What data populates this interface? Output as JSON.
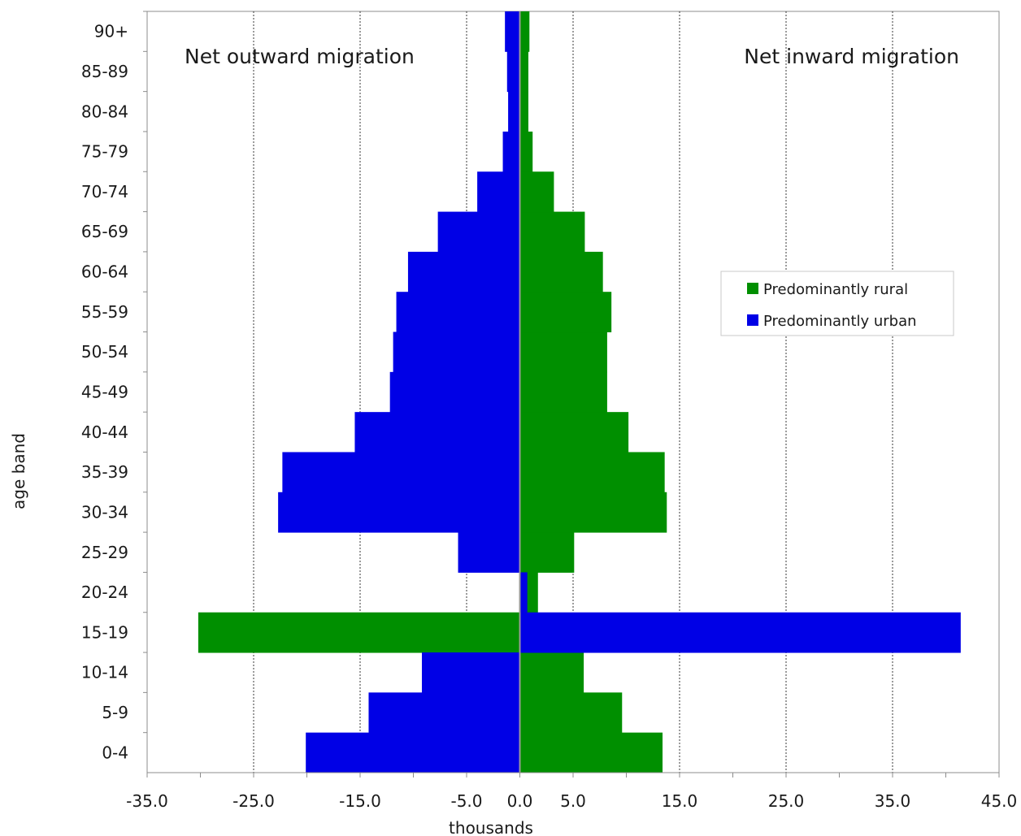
{
  "chart_data": {
    "type": "bar",
    "orientation": "horizontal",
    "barmode": "overlay",
    "categories": [
      "0-4",
      "5-9",
      "10-14",
      "15-19",
      "20-24",
      "25-29",
      "30-34",
      "35-39",
      "40-44",
      "45-49",
      "50-54",
      "55-59",
      "60-64",
      "65-69",
      "70-74",
      "75-79",
      "80-84",
      "85-89",
      "90+"
    ],
    "series": [
      {
        "name": "Predominantly rural",
        "color": "#008f00",
        "values": [
          13.4,
          9.6,
          6.0,
          -30.2,
          1.7,
          5.1,
          13.8,
          13.6,
          10.2,
          8.2,
          8.2,
          8.6,
          7.8,
          6.1,
          3.2,
          1.2,
          0.8,
          0.8,
          0.9
        ]
      },
      {
        "name": "Predominantly urban",
        "color": "#0000e6",
        "values": [
          -20.1,
          -14.2,
          -9.2,
          41.4,
          0.7,
          -5.8,
          -22.7,
          -22.3,
          -15.5,
          -12.2,
          -11.9,
          -11.6,
          -10.5,
          -7.7,
          -4.0,
          -1.6,
          -1.1,
          -1.2,
          -1.4
        ]
      }
    ],
    "xlabel": "thousands",
    "ylabel": "age band",
    "xlim": [
      -35,
      45
    ],
    "xticks": [
      "-35.0",
      "-25.0",
      "-15.0",
      "-5.0",
      "0.0",
      "5.0",
      "15.0",
      "25.0",
      "35.0",
      "45.0"
    ],
    "xtick_values": [
      -35,
      -25,
      -15,
      -5,
      0,
      5,
      15,
      25,
      35,
      45
    ],
    "grid": "vertical dotted",
    "legend_position": "right-middle",
    "annotations": [
      "Net outward migration",
      "Net inward migration"
    ]
  }
}
